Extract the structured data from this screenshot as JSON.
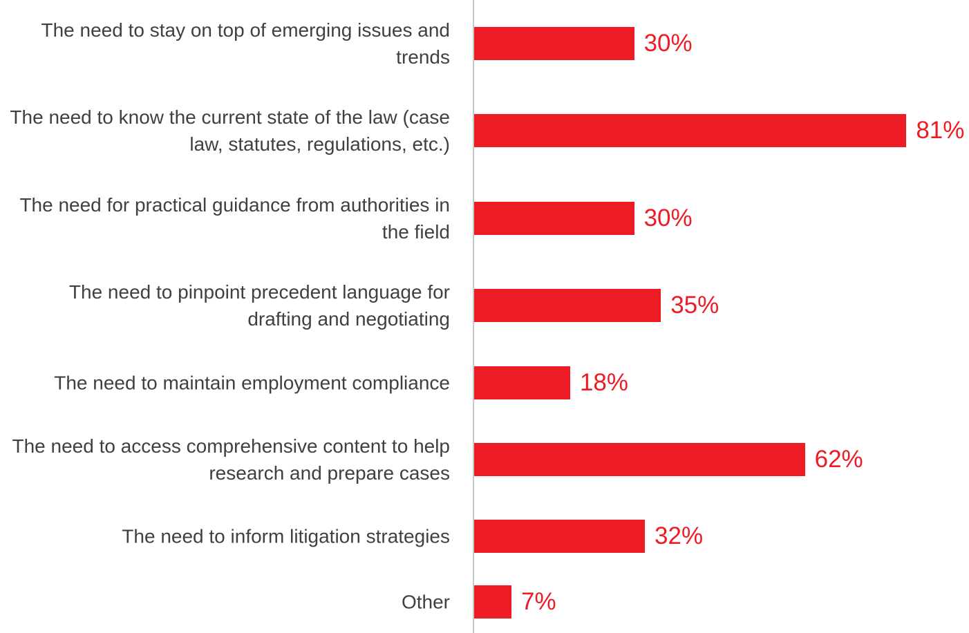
{
  "chart_data": {
    "type": "bar",
    "orientation": "horizontal",
    "categories": [
      "The need to stay on top of emerging issues and trends",
      "The need to know the current state of the law (case law, statutes, regulations, etc.)",
      "The need for practical guidance from authorities in the field",
      "The need to pinpoint precedent language for drafting and negotiating",
      "The need to maintain employment compliance",
      "The need to access comprehensive content to help research and prepare cases",
      "The need to inform litigation strategies",
      "Other"
    ],
    "values": [
      30,
      81,
      30,
      35,
      18,
      62,
      32,
      7
    ],
    "value_labels": [
      "30%",
      "81%",
      "30%",
      "35%",
      "18%",
      "62%",
      "32%",
      "7%"
    ],
    "color": "#ed1c24"
  }
}
